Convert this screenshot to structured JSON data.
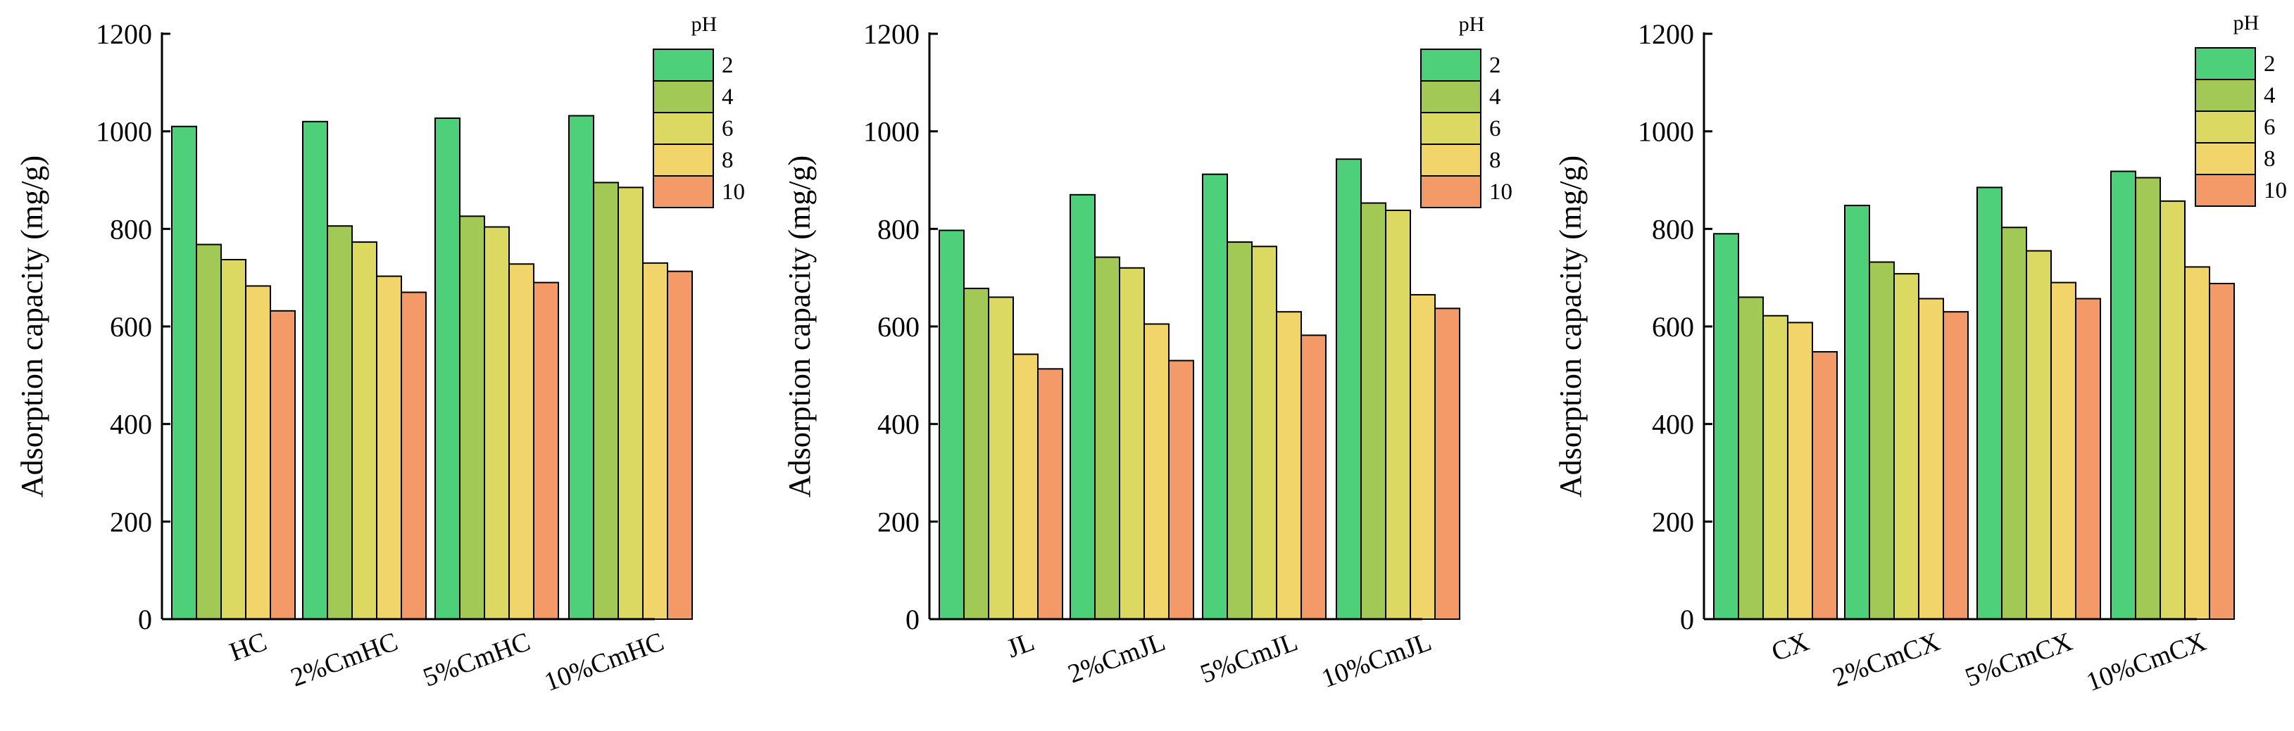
{
  "colors": {
    "pH 2": "#4ecf79",
    "pH 4": "#a2c955",
    "pH 6": "#dbd962",
    "pH 8": "#f1d56a",
    "pH 10": "#f49a68"
  },
  "chart_data": [
    {
      "type": "bar",
      "categories": [
        "HC",
        "2%CmHC",
        "5%CmHC",
        "10%CmHC"
      ],
      "series": [
        {
          "name": "2",
          "values": [
            1010,
            1020,
            1027,
            1032
          ]
        },
        {
          "name": "4",
          "values": [
            768,
            806,
            826,
            895
          ]
        },
        {
          "name": "6",
          "values": [
            737,
            773,
            804,
            885
          ]
        },
        {
          "name": "8",
          "values": [
            683,
            703,
            728,
            730
          ]
        },
        {
          "name": "10",
          "values": [
            632,
            670,
            690,
            713
          ]
        }
      ],
      "ylabel": "Adsorption capacity (mg/g)",
      "ylim": [
        0,
        1200
      ],
      "yticks": [
        0,
        200,
        400,
        600,
        800,
        1000,
        1200
      ],
      "legend_title": "pH",
      "legend_position": "top-right",
      "grid": false
    },
    {
      "type": "bar",
      "categories": [
        "JL",
        "2%CmJL",
        "5%CmJL",
        "10%CmJL"
      ],
      "series": [
        {
          "name": "2",
          "values": [
            797,
            870,
            912,
            943
          ]
        },
        {
          "name": "4",
          "values": [
            678,
            742,
            773,
            853
          ]
        },
        {
          "name": "6",
          "values": [
            660,
            720,
            764,
            838
          ]
        },
        {
          "name": "8",
          "values": [
            543,
            605,
            630,
            665
          ]
        },
        {
          "name": "10",
          "values": [
            513,
            530,
            582,
            637
          ]
        }
      ],
      "ylabel": "Adsorption capacity (mg/g)",
      "ylim": [
        0,
        1200
      ],
      "yticks": [
        0,
        200,
        400,
        600,
        800,
        1000,
        1200
      ],
      "legend_title": "pH",
      "legend_position": "top-right",
      "grid": false
    },
    {
      "type": "bar",
      "categories": [
        "CX",
        "2%CmCX",
        "5%CmCX",
        "10%CmCX"
      ],
      "series": [
        {
          "name": "2",
          "values": [
            790,
            848,
            885,
            918
          ]
        },
        {
          "name": "4",
          "values": [
            660,
            732,
            803,
            905
          ]
        },
        {
          "name": "6",
          "values": [
            622,
            708,
            755,
            857
          ]
        },
        {
          "name": "8",
          "values": [
            608,
            657,
            690,
            722
          ]
        },
        {
          "name": "10",
          "values": [
            548,
            630,
            657,
            688
          ]
        }
      ],
      "ylabel": "Adsorption capacity (mg/g)",
      "ylim": [
        0,
        1200
      ],
      "yticks": [
        0,
        200,
        400,
        600,
        800,
        1000,
        1200
      ],
      "legend_title": "pH",
      "legend_position": "top-right",
      "grid": false
    }
  ]
}
